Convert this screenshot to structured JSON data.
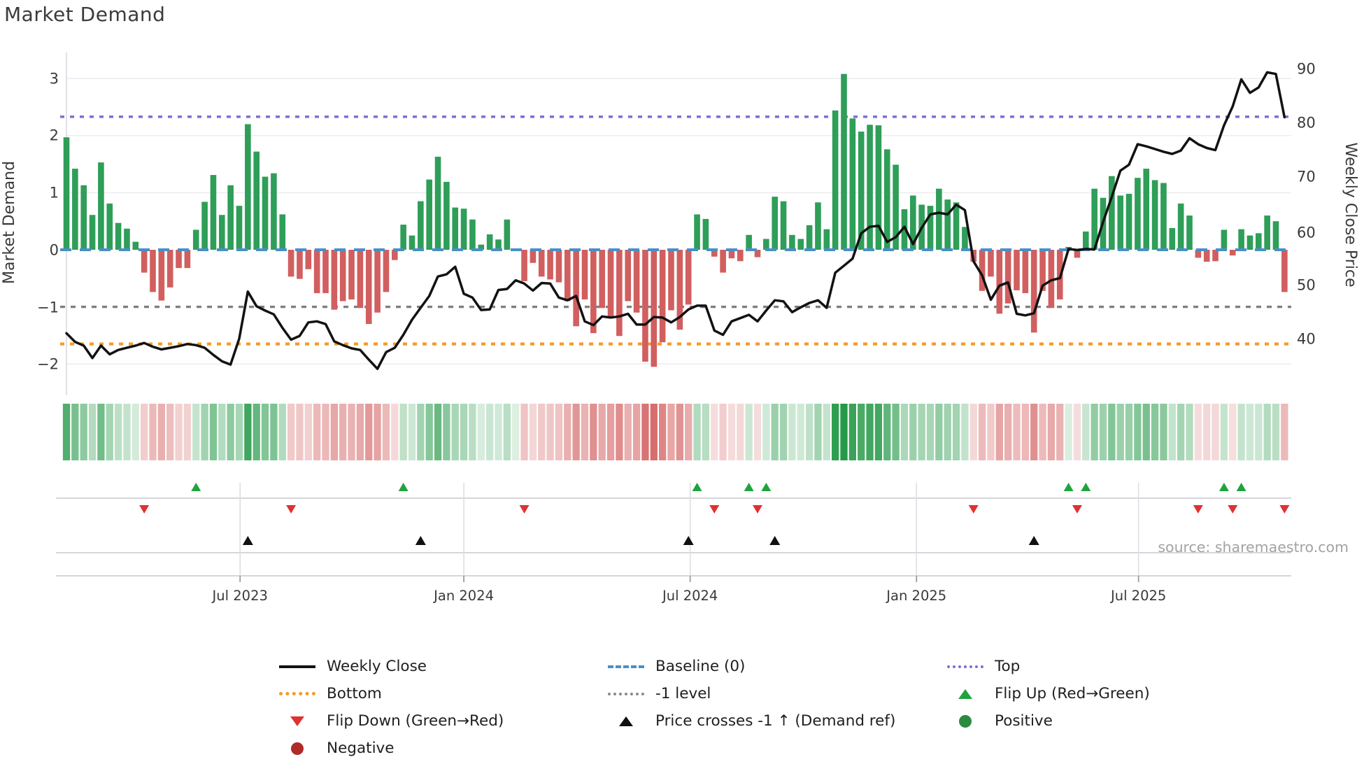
{
  "header": {
    "title": "Market Demand"
  },
  "axes": {
    "left_label": "Market Demand",
    "right_label": "Weekly Close Price",
    "left_ticks": [
      "3",
      "2",
      "1",
      "0",
      "−1",
      "−2"
    ],
    "right_ticks": [
      "90",
      "80",
      "70",
      "60",
      "50",
      "40"
    ],
    "x_tick_labels": [
      "Jul 2023",
      "Jan 2024",
      "Jul 2024",
      "Jan 2025",
      "Jul 2025"
    ]
  },
  "source_text": "source: sharemaestro.com",
  "legend": {
    "weekly_close": "Weekly Close",
    "baseline": "Baseline (0)",
    "top": "Top",
    "bottom": "Bottom",
    "minus1": "-1 level",
    "flip_up": "Flip Up (Red→Green)",
    "flip_down": "Flip Down (Green→Red)",
    "price_cross": "Price crosses -1 ↑ (Demand ref)",
    "positive": "Positive",
    "negative": "Negative"
  },
  "colors": {
    "bar_positive": "#2e9e58",
    "bar_negative": "#d15f5f",
    "price_line": "#121212",
    "baseline_blue": "#4a8fc7",
    "top_purple": "#7a6fd8",
    "bottom_orange": "#f59b25",
    "minus1_gray": "#7f7f7f",
    "flip_up_green": "#1ea43c",
    "flip_down_red": "#e03131",
    "cross_black": "#111111",
    "positive_dot": "#2b8a3e",
    "negative_dot": "#b02a2a",
    "heat_positive": "#1e9642",
    "heat_negative": "#cd4949",
    "gridline": "#ebebf0",
    "panel_line": "#c9c9cf"
  },
  "chart_data": {
    "type": "bar",
    "description": "weekly Market Demand bars (left axis) with Weekly Close price line (right axis), demand intensity heatmap strip and flip/cross event marker rows",
    "weeks_total": 142,
    "categories_note": "142 consecutive weeks, ~Feb 2023 to ~Oct 2025",
    "x_ticks": [
      {
        "label": "Jul 2023",
        "week": 20.1
      },
      {
        "label": "Jan 2024",
        "week": 46.0
      },
      {
        "label": "Jul 2024",
        "week": 72.2
      },
      {
        "label": "Jan 2025",
        "week": 98.4
      },
      {
        "label": "Jul 2025",
        "week": 124.1
      }
    ],
    "series": [
      {
        "name": "Market Demand",
        "type": "bar",
        "axis": "left",
        "values": [
          1.97,
          1.42,
          1.13,
          0.61,
          1.53,
          0.81,
          0.47,
          0.37,
          0.14,
          -0.4,
          -0.74,
          -0.89,
          -0.66,
          -0.32,
          -0.32,
          0.35,
          0.84,
          1.31,
          0.61,
          1.13,
          0.77,
          2.2,
          1.72,
          1.28,
          1.34,
          0.62,
          -0.47,
          -0.51,
          -0.34,
          -0.76,
          -0.76,
          -1.05,
          -0.9,
          -0.87,
          -1.02,
          -1.3,
          -1.1,
          -0.74,
          -0.18,
          0.44,
          0.25,
          0.85,
          1.23,
          1.63,
          1.19,
          0.74,
          0.72,
          0.53,
          0.09,
          0.27,
          0.18,
          0.53,
          0.02,
          -0.55,
          -0.23,
          -0.47,
          -0.52,
          -0.57,
          -0.9,
          -1.34,
          -0.87,
          -1.46,
          -1.02,
          -1.2,
          -1.51,
          -0.9,
          -1.1,
          -1.96,
          -2.05,
          -1.62,
          -1.06,
          -1.4,
          -0.96,
          0.62,
          0.54,
          -0.12,
          -0.4,
          -0.15,
          -0.2,
          0.26,
          -0.13,
          0.19,
          0.93,
          0.85,
          0.26,
          0.19,
          0.43,
          0.83,
          0.36,
          2.44,
          3.08,
          2.3,
          2.07,
          2.19,
          2.18,
          1.76,
          1.49,
          0.71,
          0.95,
          0.79,
          0.77,
          1.07,
          0.88,
          0.83,
          0.4,
          -0.21,
          -0.72,
          -0.47,
          -1.12,
          -0.94,
          -0.71,
          -0.76,
          -1.45,
          -0.72,
          -1.02,
          -0.87,
          0.05,
          -0.14,
          0.32,
          1.07,
          0.91,
          1.29,
          0.95,
          0.98,
          1.26,
          1.42,
          1.22,
          1.17,
          0.38,
          0.81,
          0.6,
          -0.14,
          -0.21,
          -0.2,
          0.35,
          -0.1,
          0.36,
          0.25,
          0.29,
          0.6,
          0.5,
          -0.74
        ]
      },
      {
        "name": "Weekly Close",
        "type": "line",
        "axis": "right",
        "values": [
          41.0,
          39.4,
          38.7,
          36.4,
          38.7,
          37.1,
          37.9,
          38.3,
          38.7,
          39.2,
          38.5,
          38.0,
          38.3,
          38.6,
          39.0,
          38.8,
          38.3,
          37.0,
          35.8,
          35.2,
          40.0,
          48.7,
          46.0,
          45.2,
          44.5,
          42.0,
          39.8,
          40.5,
          43.0,
          43.2,
          42.7,
          39.5,
          38.8,
          38.2,
          37.9,
          36.1,
          34.4,
          37.5,
          38.3,
          40.7,
          43.5,
          45.7,
          47.9,
          51.5,
          51.9,
          53.3,
          48.3,
          47.6,
          45.3,
          45.4,
          49.0,
          49.2,
          50.8,
          50.2,
          48.9,
          50.3,
          50.2,
          47.6,
          47.1,
          47.9,
          43.2,
          42.5,
          44.1,
          43.9,
          44.1,
          44.6,
          42.6,
          42.6,
          44.0,
          43.9,
          43.0,
          44.0,
          45.4,
          46.1,
          46.1,
          41.5,
          40.7,
          43.2,
          43.8,
          44.4,
          43.2,
          45.2,
          47.1,
          46.9,
          44.9,
          45.8,
          46.6,
          47.1,
          45.7,
          52.2,
          53.5,
          54.8,
          59.5,
          60.7,
          60.9,
          57.9,
          58.8,
          60.7,
          57.5,
          60.5,
          63.0,
          63.3,
          63.0,
          64.8,
          63.8,
          54.3,
          51.7,
          47.2,
          49.8,
          50.4,
          44.6,
          44.3,
          44.7,
          49.8,
          50.8,
          51.2,
          56.6,
          56.4,
          56.6,
          56.5,
          61.6,
          66.2,
          71.1,
          72.2,
          76.0,
          75.6,
          75.1,
          74.6,
          74.2,
          74.8,
          77.1,
          76.0,
          75.3,
          74.9,
          79.5,
          83.0,
          88.0,
          85.5,
          86.5,
          89.3,
          89.0,
          81.0
        ]
      }
    ],
    "ref_lines": {
      "baseline": 0,
      "top": 2.33,
      "bottom": -1.65,
      "minus_one_level": -1.0
    },
    "ylim_left": [
      -2.55,
      3.45
    ],
    "ylim_right": [
      29.5,
      93.0
    ],
    "left_gridline_values": [
      3,
      2,
      1,
      -2
    ],
    "markers": {
      "flip_up_weeks": [
        15,
        39,
        73,
        79,
        81,
        116,
        118,
        134,
        136
      ],
      "flip_down_weeks": [
        9,
        26,
        53,
        75,
        80,
        105,
        117,
        131,
        135,
        141
      ],
      "price_cross_weeks": [
        21,
        41,
        72,
        82,
        112
      ]
    },
    "heatmap": {
      "source": "Market Demand bar values as color intensity",
      "positive_color": "#1e9642",
      "negative_color": "#cd4949"
    }
  }
}
